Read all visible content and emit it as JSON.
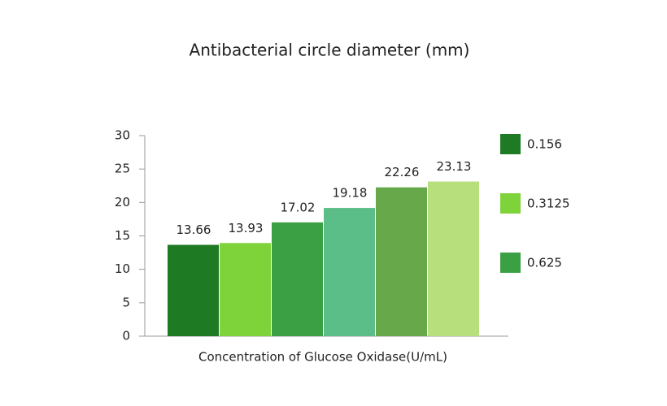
{
  "chart_data": {
    "type": "bar",
    "title": "Antibacterial circle diameter (mm)",
    "x_label": "Concentration of Glucose Oxidase(U/mL)",
    "categories": [
      "0.156",
      "0.3125",
      "0.625",
      null,
      null,
      null
    ],
    "values": [
      13.66,
      13.93,
      17.02,
      19.18,
      22.26,
      23.13
    ],
    "colors": [
      "#1e7a23",
      "#7ed23a",
      "#3aa043",
      "#5bbd87",
      "#66a84a",
      "#b7df7c"
    ],
    "ylim": [
      0,
      30
    ],
    "yticks": [
      0,
      5,
      10,
      15,
      20,
      25,
      30
    ],
    "grid": false,
    "legend": "right"
  }
}
